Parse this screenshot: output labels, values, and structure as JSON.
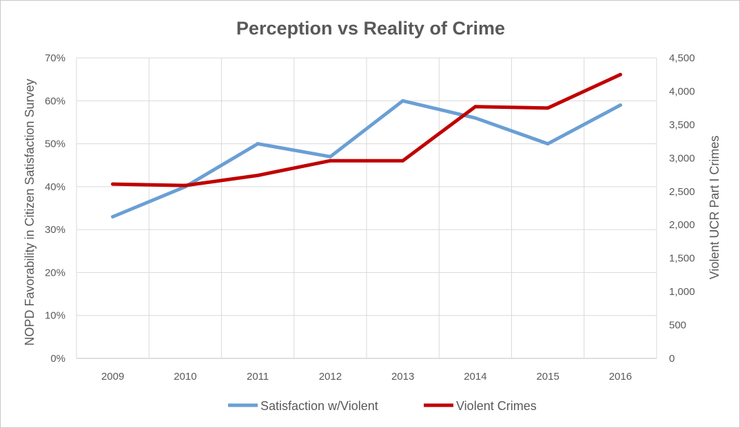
{
  "chart_data": {
    "type": "line",
    "title": "Perception vs Reality of Crime",
    "categories": [
      "2009",
      "2010",
      "2011",
      "2012",
      "2013",
      "2014",
      "2015",
      "2016"
    ],
    "y_left": {
      "label": "NOPD Favorability in Citizen Satisfaction Survey",
      "range": [
        0,
        0.7
      ],
      "ticks": [
        0,
        0.1,
        0.2,
        0.3,
        0.4,
        0.5,
        0.6,
        0.7
      ],
      "tick_labels": [
        "0%",
        "10%",
        "20%",
        "30%",
        "40%",
        "50%",
        "60%",
        "70%"
      ]
    },
    "y_right": {
      "label": "Violent UCR Part I Crimes",
      "range": [
        0,
        4500
      ],
      "ticks": [
        0,
        500,
        1000,
        1500,
        2000,
        2500,
        3000,
        3500,
        4000,
        4500
      ],
      "tick_labels": [
        "0",
        "500",
        "1,000",
        "1,500",
        "2,000",
        "2,500",
        "3,000",
        "3,500",
        "4,000",
        "4,500"
      ]
    },
    "series": [
      {
        "name": "Satisfaction w/Violent",
        "axis": "left",
        "color": "#6a9fd4",
        "values": [
          0.33,
          0.4,
          0.5,
          0.47,
          0.6,
          0.56,
          0.5,
          0.59
        ]
      },
      {
        "name": "Violent Crimes",
        "axis": "right",
        "color": "#c00000",
        "values": [
          2610,
          2590,
          2740,
          2960,
          2960,
          3770,
          3750,
          4250
        ]
      }
    ],
    "grid": true,
    "legend": "bottom"
  }
}
